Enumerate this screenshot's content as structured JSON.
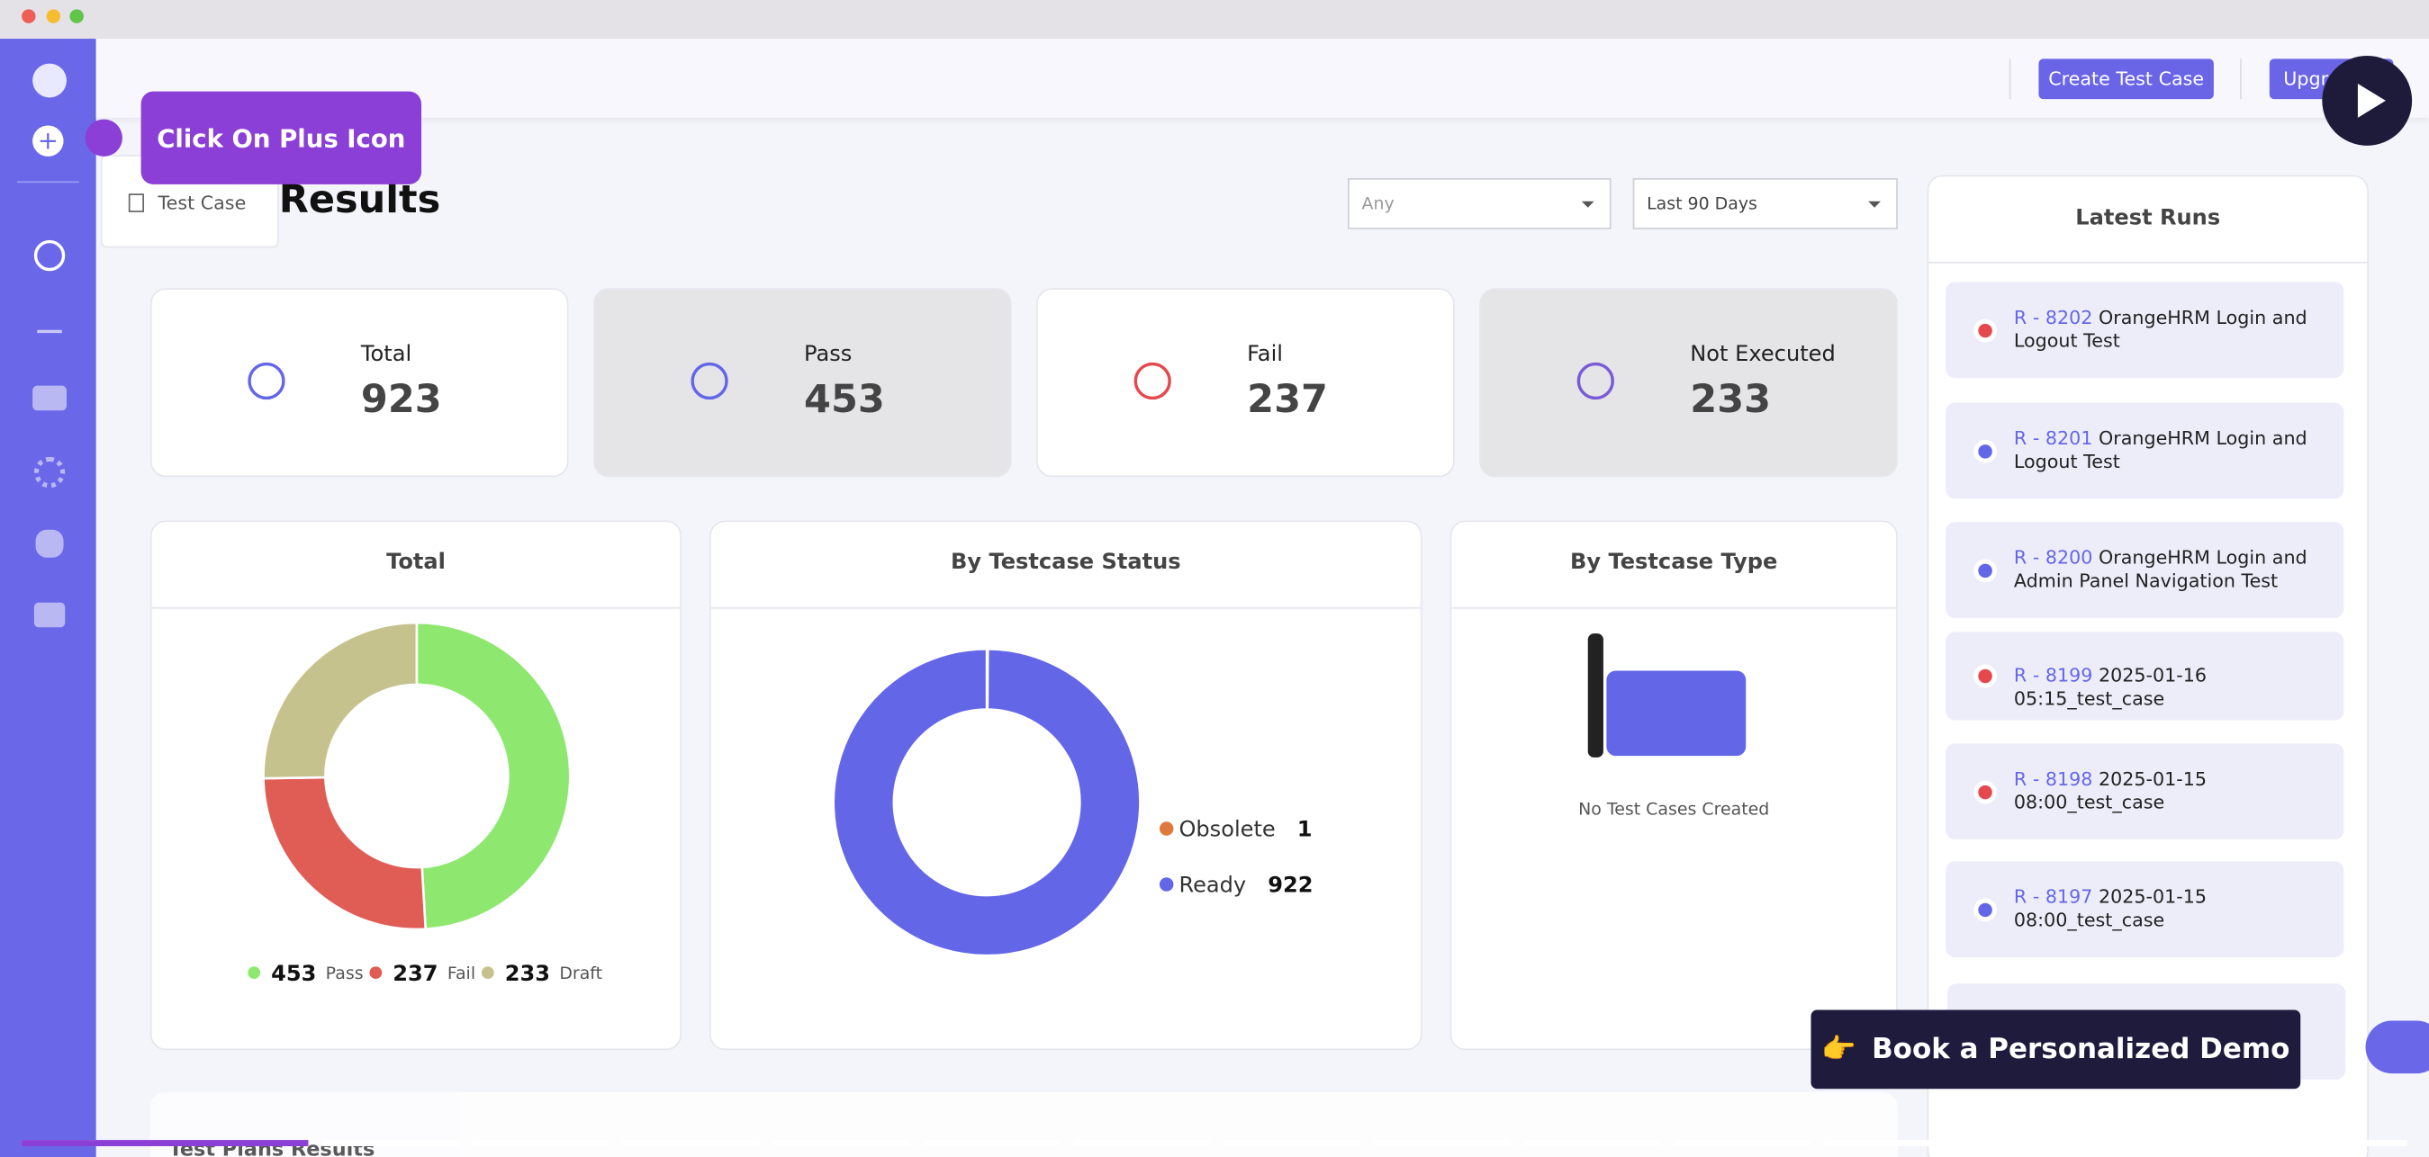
{
  "header": {
    "create_button": "Create Test Case",
    "upgrade_button": "Upgrade"
  },
  "tooltip": "Click On Plus Icon",
  "menu": {
    "item": "Test Case"
  },
  "page_title": "Results",
  "filters": [
    "Any",
    "Last 90 Days"
  ],
  "stats": [
    {
      "label": "Total",
      "value": 923
    },
    {
      "label": "Pass",
      "value": 453
    },
    {
      "label": "Fail",
      "value": 237
    },
    {
      "label": "Not Executed",
      "value": 233
    }
  ],
  "total_chart": {
    "title": "Total",
    "segments": [
      {
        "name": "Pass",
        "value": 453,
        "color": "#8ee86f"
      },
      {
        "name": "Fail",
        "value": 237,
        "color": "#e05d56"
      },
      {
        "name": "Draft",
        "value": 233,
        "color": "#c6c28d"
      }
    ]
  },
  "status_chart": {
    "title": "By Testcase Status",
    "segments": [
      {
        "name": "Obsolete",
        "value": 1,
        "color": "#e07a3c"
      },
      {
        "name": "Ready",
        "value": 922,
        "color": "#6466e8"
      }
    ]
  },
  "type_chart": {
    "title": "By Testcase Type",
    "empty_text": "No Test Cases Created"
  },
  "latest_runs": {
    "title": "Latest Runs",
    "runs": [
      {
        "id": "R - 8202",
        "name": "OrangeHRM Login and Logout Test",
        "color": "#e5484d"
      },
      {
        "id": "R - 8201",
        "name": "OrangeHRM Login and Logout Test",
        "color": "#6466e8"
      },
      {
        "id": "R - 8200",
        "name": "OrangeHRM Login and Admin Panel Navigation Test",
        "color": "#6466e8"
      },
      {
        "id": "R - 8199",
        "name": "2025-01-16 05:15_test_case",
        "color": "#e5484d"
      },
      {
        "id": "R - 8198",
        "name": "2025-01-15 08:00_test_case",
        "color": "#e5484d"
      },
      {
        "id": "R - 8197",
        "name": "2025-01-15 08:00_test_case",
        "color": "#6466e8"
      }
    ]
  },
  "demo_button": {
    "icon": "👉",
    "text": "Book a Personalized Demo"
  },
  "bottom_section": "Test Plans Results"
}
